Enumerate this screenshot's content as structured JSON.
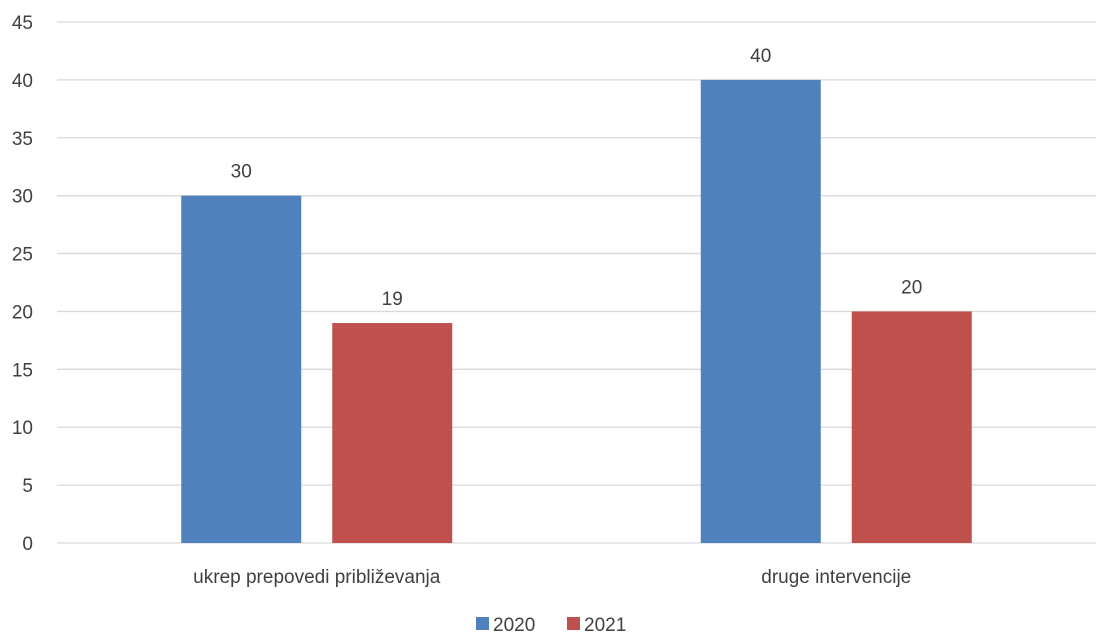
{
  "chart_data": {
    "type": "bar",
    "categories": [
      "ukrep prepovedi približevanja",
      "druge intervencije"
    ],
    "series": [
      {
        "name": "2020",
        "values": [
          30,
          40
        ],
        "color": "#4f81bd"
      },
      {
        "name": "2021",
        "values": [
          19,
          20
        ],
        "color": "#c0504d"
      }
    ],
    "ylim": [
      0,
      45
    ],
    "ytick_step": 5,
    "grid": true,
    "data_labels": true,
    "legend_position": "bottom",
    "title": "",
    "xlabel": "",
    "ylabel": ""
  }
}
